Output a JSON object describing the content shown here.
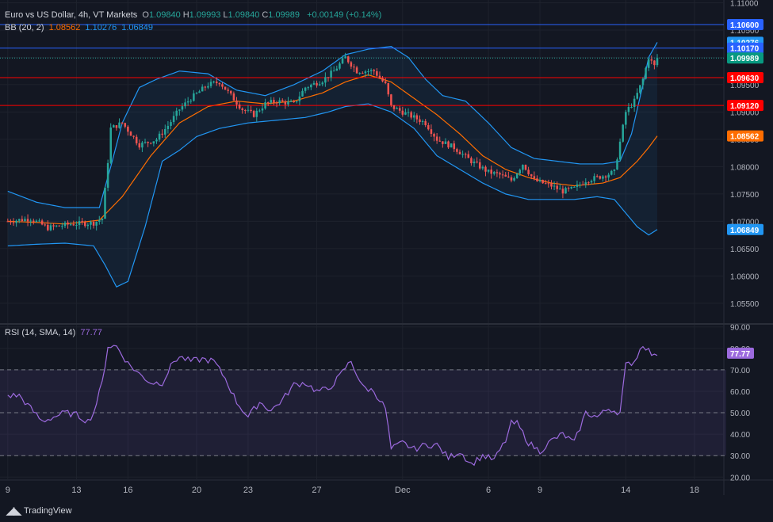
{
  "header": {
    "title": "Euro vs US Dollar, 4h, VT Markets",
    "ohlc": [
      {
        "label": "O",
        "value": "1.09840"
      },
      {
        "label": "H",
        "value": "1.09993"
      },
      {
        "label": "L",
        "value": "1.09840"
      },
      {
        "label": "C",
        "value": "1.09989"
      }
    ],
    "change": "+0.00149 (+0.14%)"
  },
  "bb_legend": {
    "label": "BB (20, 2)",
    "basis": "1.08562",
    "upper": "1.10276",
    "lower": "1.06849"
  },
  "rsi_legend": {
    "label": "RSI (14, SMA, 14)",
    "value": "77.77"
  },
  "footer": {
    "brand": "TradingView"
  },
  "colors": {
    "background": "#131722",
    "up": "#26a69a",
    "down": "#ef5350",
    "bb_band": "#2196f3",
    "bb_basis": "#ff6d00",
    "rsi": "#9c6ade",
    "resistance": "#ff0000",
    "top_line": "#2962ff"
  },
  "chart_data": [
    {
      "type": "candlestick",
      "y_axis_side": "right",
      "ylim": [
        1.0515,
        1.1105
      ],
      "y_ticks": [
        1.11,
        1.105,
        1.1,
        1.095,
        1.09,
        1.085,
        1.08,
        1.075,
        1.07,
        1.065,
        1.06,
        1.055
      ],
      "x_ticks": [
        {
          "label": "9",
          "x": 0
        },
        {
          "label": "13",
          "x": 24
        },
        {
          "label": "16",
          "x": 42
        },
        {
          "label": "20",
          "x": 66
        },
        {
          "label": "23",
          "x": 84
        },
        {
          "label": "27",
          "x": 108
        },
        {
          "label": "Dec",
          "x": 138
        },
        {
          "label": "6",
          "x": 168
        },
        {
          "label": "9",
          "x": 186
        },
        {
          "label": "14",
          "x": 216
        },
        {
          "label": "18",
          "x": 240
        }
      ],
      "xlim": [
        -0.5,
        250
      ],
      "horizontal_lines": [
        {
          "value": 1.106,
          "label": "1.10600",
          "color": "#2962ff",
          "style": "solid"
        },
        {
          "value": 1.1017,
          "label": "1.10170",
          "color": "#2962ff",
          "style": "solid"
        },
        {
          "value": 1.0963,
          "label": "1.09630",
          "color": "#ff0000",
          "style": "solid"
        },
        {
          "value": 1.0912,
          "label": "1.09120",
          "color": "#ff0000",
          "style": "solid"
        },
        {
          "value": 1.09989,
          "label": "1.09989",
          "color": "#26a69a",
          "style": "dotted"
        }
      ],
      "price_tags": [
        {
          "value": 1.106,
          "label": "1.10600",
          "bg": "#2962ff"
        },
        {
          "value": 1.10276,
          "label": "1.10276",
          "bg": "#2196f3"
        },
        {
          "value": 1.1017,
          "label": "1.10170",
          "bg": "#2962ff"
        },
        {
          "value": 1.09989,
          "label": "1.09989",
          "bg": "#089981"
        },
        {
          "value": 1.0963,
          "label": "1.09630",
          "bg": "#ff0000"
        },
        {
          "value": 1.0912,
          "label": "1.09120",
          "bg": "#ff0000"
        },
        {
          "value": 1.08562,
          "label": "1.08562",
          "bg": "#ff6d00"
        },
        {
          "value": 1.06849,
          "label": "1.06849",
          "bg": "#2196f3"
        }
      ],
      "close_anchors": [
        [
          0,
          1.07
        ],
        [
          8,
          1.0705
        ],
        [
          14,
          1.0688
        ],
        [
          22,
          1.0695
        ],
        [
          30,
          1.0697
        ],
        [
          33,
          1.0705
        ],
        [
          35,
          1.081
        ],
        [
          36,
          1.087
        ],
        [
          40,
          1.088
        ],
        [
          46,
          1.084
        ],
        [
          52,
          1.085
        ],
        [
          56,
          1.0875
        ],
        [
          60,
          1.0905
        ],
        [
          64,
          1.0925
        ],
        [
          70,
          1.095
        ],
        [
          74,
          1.0955
        ],
        [
          78,
          1.093
        ],
        [
          82,
          1.0905
        ],
        [
          86,
          1.0895
        ],
        [
          90,
          1.0915
        ],
        [
          94,
          1.092
        ],
        [
          100,
          1.0915
        ],
        [
          104,
          1.0945
        ],
        [
          110,
          1.0958
        ],
        [
          114,
          1.0975
        ],
        [
          118,
          1.1
        ],
        [
          122,
          1.0975
        ],
        [
          128,
          1.0975
        ],
        [
          132,
          1.095
        ],
        [
          134,
          1.091
        ],
        [
          140,
          1.0895
        ],
        [
          146,
          1.088
        ],
        [
          150,
          1.085
        ],
        [
          156,
          1.0835
        ],
        [
          162,
          1.081
        ],
        [
          168,
          1.079
        ],
        [
          172,
          1.0785
        ],
        [
          176,
          1.0775
        ],
        [
          180,
          1.0805
        ],
        [
          184,
          1.0775
        ],
        [
          190,
          1.0765
        ],
        [
          194,
          1.0755
        ],
        [
          198,
          1.076
        ],
        [
          202,
          1.0775
        ],
        [
          206,
          1.078
        ],
        [
          212,
          1.079
        ],
        [
          216,
          1.09
        ],
        [
          219,
          1.092
        ],
        [
          222,
          1.096
        ],
        [
          224,
          1.1
        ],
        [
          226,
          1.0984
        ],
        [
          227,
          1.09989
        ]
      ],
      "bb_upper": [
        [
          0,
          1.0755
        ],
        [
          10,
          1.0735
        ],
        [
          20,
          1.0725
        ],
        [
          32,
          1.0725
        ],
        [
          36,
          1.08
        ],
        [
          40,
          1.088
        ],
        [
          46,
          1.0945
        ],
        [
          52,
          1.096
        ],
        [
          60,
          1.0975
        ],
        [
          70,
          1.097
        ],
        [
          80,
          1.094
        ],
        [
          90,
          1.093
        ],
        [
          100,
          1.095
        ],
        [
          110,
          1.0975
        ],
        [
          118,
          1.1005
        ],
        [
          126,
          1.1015
        ],
        [
          134,
          1.102
        ],
        [
          140,
          1.1
        ],
        [
          146,
          1.096
        ],
        [
          152,
          1.093
        ],
        [
          160,
          1.092
        ],
        [
          168,
          1.088
        ],
        [
          176,
          1.0835
        ],
        [
          184,
          1.0815
        ],
        [
          192,
          1.081
        ],
        [
          200,
          1.0805
        ],
        [
          208,
          1.0805
        ],
        [
          214,
          1.081
        ],
        [
          218,
          1.086
        ],
        [
          222,
          1.095
        ],
        [
          224,
          1.1
        ],
        [
          227,
          1.10276
        ]
      ],
      "bb_basis": [
        [
          0,
          1.07
        ],
        [
          10,
          1.0698
        ],
        [
          20,
          1.0695
        ],
        [
          32,
          1.0702
        ],
        [
          40,
          1.0745
        ],
        [
          50,
          1.082
        ],
        [
          60,
          1.088
        ],
        [
          70,
          1.091
        ],
        [
          80,
          1.092
        ],
        [
          90,
          1.0915
        ],
        [
          100,
          1.092
        ],
        [
          110,
          1.0935
        ],
        [
          118,
          1.0955
        ],
        [
          126,
          1.0968
        ],
        [
          134,
          1.0955
        ],
        [
          142,
          1.0925
        ],
        [
          150,
          1.0895
        ],
        [
          158,
          1.086
        ],
        [
          166,
          1.082
        ],
        [
          174,
          1.0795
        ],
        [
          182,
          1.078
        ],
        [
          190,
          1.077
        ],
        [
          198,
          1.0765
        ],
        [
          208,
          1.077
        ],
        [
          214,
          1.078
        ],
        [
          220,
          1.081
        ],
        [
          224,
          1.0835
        ],
        [
          227,
          1.08562
        ]
      ],
      "bb_lower": [
        [
          0,
          1.0655
        ],
        [
          10,
          1.0658
        ],
        [
          20,
          1.066
        ],
        [
          30,
          1.0655
        ],
        [
          34,
          1.062
        ],
        [
          38,
          1.058
        ],
        [
          42,
          1.059
        ],
        [
          48,
          1.069
        ],
        [
          54,
          1.081
        ],
        [
          60,
          1.083
        ],
        [
          66,
          1.0855
        ],
        [
          74,
          1.087
        ],
        [
          84,
          1.088
        ],
        [
          94,
          1.0885
        ],
        [
          104,
          1.089
        ],
        [
          112,
          1.09
        ],
        [
          118,
          1.091
        ],
        [
          126,
          1.0915
        ],
        [
          134,
          1.09
        ],
        [
          142,
          1.087
        ],
        [
          150,
          1.082
        ],
        [
          158,
          1.0795
        ],
        [
          166,
          1.077
        ],
        [
          174,
          1.075
        ],
        [
          182,
          1.074
        ],
        [
          190,
          1.074
        ],
        [
          198,
          1.074
        ],
        [
          206,
          1.0745
        ],
        [
          212,
          1.074
        ],
        [
          216,
          1.0715
        ],
        [
          220,
          1.069
        ],
        [
          224,
          1.0675
        ],
        [
          227,
          1.06849
        ]
      ]
    },
    {
      "type": "line",
      "name": "RSI (14, SMA, 14)",
      "y_axis_side": "right",
      "ylim": [
        19,
        91
      ],
      "y_ticks": [
        90,
        80,
        70,
        60,
        50,
        40,
        30,
        20
      ],
      "levels": [
        70,
        50,
        30
      ],
      "shaded_band": [
        30,
        70
      ],
      "rsi_anchors": [
        [
          0,
          58
        ],
        [
          4,
          58
        ],
        [
          8,
          52
        ],
        [
          12,
          46
        ],
        [
          16,
          48
        ],
        [
          20,
          50
        ],
        [
          24,
          49
        ],
        [
          28,
          46
        ],
        [
          30,
          50
        ],
        [
          33,
          64
        ],
        [
          35,
          81
        ],
        [
          38,
          81
        ],
        [
          42,
          73
        ],
        [
          46,
          68
        ],
        [
          50,
          64
        ],
        [
          54,
          64
        ],
        [
          58,
          74
        ],
        [
          60,
          76
        ],
        [
          64,
          74
        ],
        [
          68,
          75
        ],
        [
          72,
          74
        ],
        [
          76,
          66
        ],
        [
          80,
          55
        ],
        [
          84,
          48
        ],
        [
          88,
          55
        ],
        [
          92,
          51
        ],
        [
          96,
          56
        ],
        [
          100,
          63
        ],
        [
          104,
          64
        ],
        [
          108,
          60
        ],
        [
          112,
          61
        ],
        [
          116,
          67
        ],
        [
          118,
          71
        ],
        [
          120,
          74
        ],
        [
          124,
          62
        ],
        [
          128,
          60
        ],
        [
          132,
          52
        ],
        [
          134,
          33
        ],
        [
          138,
          36
        ],
        [
          142,
          33
        ],
        [
          146,
          35
        ],
        [
          150,
          35
        ],
        [
          154,
          29
        ],
        [
          158,
          32
        ],
        [
          162,
          26
        ],
        [
          166,
          30
        ],
        [
          170,
          28
        ],
        [
          174,
          37
        ],
        [
          176,
          45
        ],
        [
          178,
          45
        ],
        [
          182,
          36
        ],
        [
          186,
          32
        ],
        [
          190,
          37
        ],
        [
          194,
          40
        ],
        [
          198,
          36
        ],
        [
          202,
          50
        ],
        [
          206,
          48
        ],
        [
          210,
          52
        ],
        [
          214,
          50
        ],
        [
          216,
          72
        ],
        [
          219,
          74
        ],
        [
          222,
          82
        ],
        [
          226,
          76
        ],
        [
          227,
          77.77
        ]
      ]
    }
  ]
}
